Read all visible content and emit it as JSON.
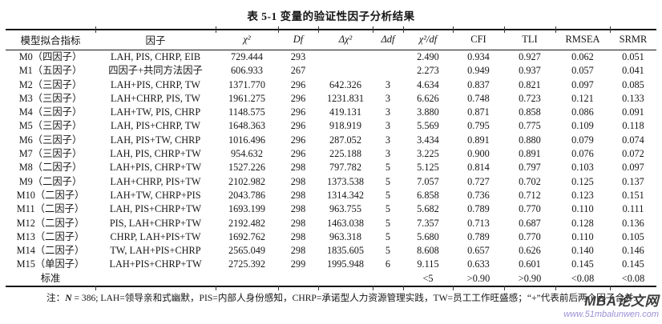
{
  "page": {
    "title": "表 5-1 变量的验证性因子分析结果"
  },
  "table": {
    "columns": [
      {
        "key": "model",
        "label": "模型拟合指标",
        "italic": false
      },
      {
        "key": "factors",
        "label": "因子",
        "italic": false
      },
      {
        "key": "chi2",
        "label": "χ²",
        "italic": true
      },
      {
        "key": "df",
        "label": "Df",
        "italic": true
      },
      {
        "key": "dchi2",
        "label": "Δχ²",
        "italic": true
      },
      {
        "key": "ddf",
        "label": "Δdf",
        "italic": true
      },
      {
        "key": "ratio",
        "label": "χ²/df",
        "italic": true
      },
      {
        "key": "cfi",
        "label": "CFI",
        "italic": false
      },
      {
        "key": "tli",
        "label": "TLI",
        "italic": false
      },
      {
        "key": "rmsea",
        "label": "RMSEA",
        "italic": false
      },
      {
        "key": "srmr",
        "label": "SRMR",
        "italic": false
      }
    ],
    "rows": [
      {
        "model": "M0（四因子）",
        "factors": "LAH, PIS, CHRP, EIB",
        "chi2": "729.444",
        "df": "293",
        "dchi2": "",
        "ddf": "",
        "ratio": "2.490",
        "cfi": "0.934",
        "tli": "0.927",
        "rmsea": "0.062",
        "srmr": "0.051"
      },
      {
        "model": "M1（五因子）",
        "factors": "四因子+共同方法因子",
        "chi2": "606.933",
        "df": "267",
        "dchi2": "",
        "ddf": "",
        "ratio": "2.273",
        "cfi": "0.949",
        "tli": "0.937",
        "rmsea": "0.057",
        "srmr": "0.041"
      },
      {
        "model": "M2（三因子）",
        "factors": "LAH+PIS, CHRP, TW",
        "chi2": "1371.770",
        "df": "296",
        "dchi2": "642.326",
        "ddf": "3",
        "ratio": "4.634",
        "cfi": "0.837",
        "tli": "0.821",
        "rmsea": "0.097",
        "srmr": "0.085"
      },
      {
        "model": "M3（三因子）",
        "factors": "LAH+CHRP, PIS, TW",
        "chi2": "1961.275",
        "df": "296",
        "dchi2": "1231.831",
        "ddf": "3",
        "ratio": "6.626",
        "cfi": "0.748",
        "tli": "0.723",
        "rmsea": "0.121",
        "srmr": "0.133"
      },
      {
        "model": "M4（三因子）",
        "factors": "LAH+TW, PIS, CHRP",
        "chi2": "1148.575",
        "df": "296",
        "dchi2": "419.131",
        "ddf": "3",
        "ratio": "3.880",
        "cfi": "0.871",
        "tli": "0.858",
        "rmsea": "0.086",
        "srmr": "0.091"
      },
      {
        "model": "M5（三因子）",
        "factors": "LAH, PIS+CHRP, TW",
        "chi2": "1648.363",
        "df": "296",
        "dchi2": "918.919",
        "ddf": "3",
        "ratio": "5.569",
        "cfi": "0.795",
        "tli": "0.775",
        "rmsea": "0.109",
        "srmr": "0.118"
      },
      {
        "model": "M6（三因子）",
        "factors": "LAH, PIS+TW, CHRP",
        "chi2": "1016.496",
        "df": "296",
        "dchi2": "287.052",
        "ddf": "3",
        "ratio": "3.434",
        "cfi": "0.891",
        "tli": "0.880",
        "rmsea": "0.079",
        "srmr": "0.074"
      },
      {
        "model": "M7（三因子）",
        "factors": "LAH, PIS, CHRP+TW",
        "chi2": "954.632",
        "df": "296",
        "dchi2": "225.188",
        "ddf": "3",
        "ratio": "3.225",
        "cfi": "0.900",
        "tli": "0.891",
        "rmsea": "0.076",
        "srmr": "0.072"
      },
      {
        "model": "M8（二因子）",
        "factors": "LAH+PIS, CHRP+TW",
        "chi2": "1527.226",
        "df": "298",
        "dchi2": "797.782",
        "ddf": "5",
        "ratio": "5.125",
        "cfi": "0.814",
        "tli": "0.797",
        "rmsea": "0.103",
        "srmr": "0.097"
      },
      {
        "model": "M9（二因子）",
        "factors": "LAH+CHRP, PIS+TW",
        "chi2": "2102.982",
        "df": "298",
        "dchi2": "1373.538",
        "ddf": "5",
        "ratio": "7.057",
        "cfi": "0.727",
        "tli": "0.702",
        "rmsea": "0.125",
        "srmr": "0.137"
      },
      {
        "model": "M10（二因子）",
        "factors": "LAH+TW, CHRP+PIS",
        "chi2": "2043.786",
        "df": "298",
        "dchi2": "1314.342",
        "ddf": "5",
        "ratio": "6.858",
        "cfi": "0.736",
        "tli": "0.712",
        "rmsea": "0.123",
        "srmr": "0.151"
      },
      {
        "model": "M11（二因子）",
        "factors": "LAH, PIS+CHRP+TW",
        "chi2": "1693.199",
        "df": "298",
        "dchi2": "963.755",
        "ddf": "5",
        "ratio": "5.682",
        "cfi": "0.789",
        "tli": "0.770",
        "rmsea": "0.110",
        "srmr": "0.111"
      },
      {
        "model": "M12（二因子）",
        "factors": "PIS, LAH+CHRP+TW",
        "chi2": "2192.482",
        "df": "298",
        "dchi2": "1463.038",
        "ddf": "5",
        "ratio": "7.357",
        "cfi": "0.713",
        "tli": "0.687",
        "rmsea": "0.128",
        "srmr": "0.136"
      },
      {
        "model": "M13（二因子）",
        "factors": "CHRP, LAH+PIS+TW",
        "chi2": "1692.762",
        "df": "298",
        "dchi2": "963.318",
        "ddf": "5",
        "ratio": "5.680",
        "cfi": "0.789",
        "tli": "0.770",
        "rmsea": "0.110",
        "srmr": "0.105"
      },
      {
        "model": "M14（二因子）",
        "factors": "TW, LAH+PIS+CHRP",
        "chi2": "2565.049",
        "df": "298",
        "dchi2": "1835.605",
        "ddf": "5",
        "ratio": "8.608",
        "cfi": "0.657",
        "tli": "0.626",
        "rmsea": "0.140",
        "srmr": "0.146"
      },
      {
        "model": "M15（单因子）",
        "factors": "LAH+PIS+CHRP+TW",
        "chi2": "2725.392",
        "df": "299",
        "dchi2": "1995.948",
        "ddf": "6",
        "ratio": "9.115",
        "cfi": "0.633",
        "tli": "0.601",
        "rmsea": "0.145",
        "srmr": "0.145"
      }
    ],
    "standard": {
      "model": "标准",
      "factors": "",
      "chi2": "",
      "df": "",
      "dchi2": "",
      "ddf": "",
      "ratio": "<5",
      "cfi": ">0.90",
      "tli": ">0.90",
      "rmsea": "<0.08",
      "srmr": "<0.08"
    }
  },
  "note": {
    "prefix": "注：",
    "n": "N",
    "rest": " = 386; LAH=领导亲和式幽默，PIS=内部人身份感知，CHRP=承诺型人力资源管理实践，TW=员工工作旺盛感；“+”代表前后两个因子合并."
  },
  "watermark": {
    "brand": "MBA论文网",
    "url": "www.51mbalunwen.com",
    "brand_color": "#3d3d3d",
    "url_color": "#9c8fd4"
  }
}
